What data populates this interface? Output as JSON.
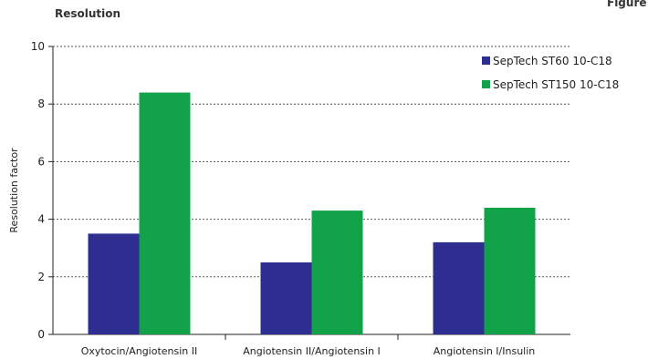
{
  "header": {
    "title": "Resolution",
    "corner_label": "Figure"
  },
  "chart_data": {
    "type": "bar",
    "title": "Resolution",
    "xlabel": "",
    "ylabel": "Resolution factor",
    "ylim": [
      0,
      10
    ],
    "yticks": [
      0,
      2,
      4,
      6,
      8,
      10
    ],
    "grid": true,
    "legend_position": "top-right",
    "categories": [
      "Oxytocin/Angiotensin II",
      "Angiotensin II/Angiotensin I",
      "Angiotensin I/Insulin"
    ],
    "series": [
      {
        "name": "SepTech ST60 10-C18",
        "color": "#2e2d90",
        "values": [
          3.5,
          2.5,
          3.2
        ]
      },
      {
        "name": "SepTech ST150 10-C18",
        "color": "#12a34a",
        "values": [
          8.4,
          4.3,
          4.4
        ]
      }
    ]
  }
}
